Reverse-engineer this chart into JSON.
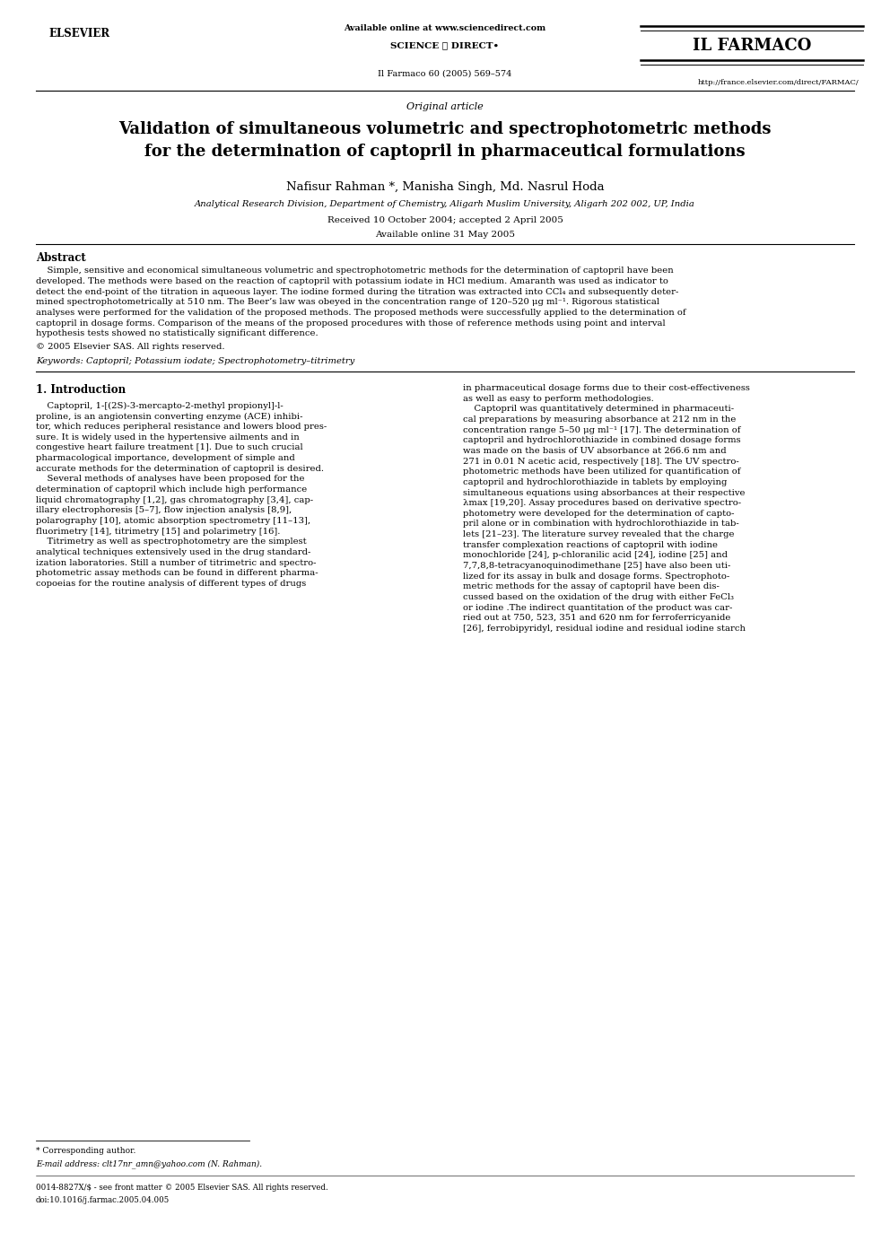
{
  "page_width": 9.92,
  "page_height": 14.03,
  "bg_color": "#ffffff",
  "header_elsevier": "ELSEVIER",
  "header_available": "Available online at www.sciencedirect.com",
  "header_scidir": "SCIENCE ⓐ DIRECT•",
  "header_journal_name": "IL FARMACO",
  "header_journal_info": "Il Farmaco 60 (2005) 569–574",
  "header_url": "http://france.elsevier.com/direct/FARMAC/",
  "article_type": "Original article",
  "title_line1": "Validation of simultaneous volumetric and spectrophotometric methods",
  "title_line2": "for the determination of captopril in pharmaceutical formulations",
  "authors": "Nafisur Rahman *, Manisha Singh, Md. Nasrul Hoda",
  "affiliation": "Analytical Research Division, Department of Chemistry, Aligarh Muslim University, Aligarh 202 002, UP, India",
  "received": "Received 10 October 2004; accepted 2 April 2005",
  "available": "Available online 31 May 2005",
  "abstract_heading": "Abstract",
  "abstract_body": "    Simple, sensitive and economical simultaneous volumetric and spectrophotometric methods for the determination of captopril have been\ndeveloped. The methods were based on the reaction of captopril with potassium iodate in HCl medium. Amaranth was used as indicator to\ndetect the end-point of the titration in aqueous layer. The iodine formed during the titration was extracted into CCl₄ and subsequently deter-\nmined spectrophotometrically at 510 nm. The Beer’s law was obeyed in the concentration range of 120–520 μg ml⁻¹. Rigorous statistical\nanalyses were performed for the validation of the proposed methods. The proposed methods were successfully applied to the determination of\ncaptopril in dosage forms. Comparison of the means of the proposed procedures with those of reference methods using point and interval\nhypothesis tests showed no statistically significant difference.",
  "copyright": "© 2005 Elsevier SAS. All rights reserved.",
  "keywords": "Keywords: Captopril; Potassium iodate; Spectrophotometry–titrimetry",
  "section1": "1. Introduction",
  "intro_left": "    Captopril, 1-[(2S)-3-mercapto-2-methyl propionyl]-l-\nproline, is an angiotensin converting enzyme (ACE) inhibi-\ntor, which reduces peripheral resistance and lowers blood pres-\nsure. It is widely used in the hypertensive ailments and in\ncongestive heart failure treatment [1]. Due to such crucial\npharmacological importance, development of simple and\naccurate methods for the determination of captopril is desired.\n    Several methods of analyses have been proposed for the\ndetermination of captopril which include high performance\nliquid chromatography [1,2], gas chromatography [3,4], cap-\nillary electrophoresis [5–7], flow injection analysis [8,9],\npolarography [10], atomic absorption spectrometry [11–13],\nfluorimetry [14], titrimetry [15] and polarimetry [16].\n    Titrimetry as well as spectrophotometry are the simplest\nanalytical techniques extensively used in the drug standard-\nization laboratories. Still a number of titrimetric and spectro-\nphotometric assay methods can be found in different pharma-\ncopoeias for the routine analysis of different types of drugs",
  "intro_right": "in pharmaceutical dosage forms due to their cost-effectiveness\nas well as easy to perform methodologies.\n    Captopril was quantitatively determined in pharmaceuti-\ncal preparations by measuring absorbance at 212 nm in the\nconcentration range 5–50 μg ml⁻¹ [17]. The determination of\ncaptopril and hydrochlorothiazide in combined dosage forms\nwas made on the basis of UV absorbance at 266.6 nm and\n271 in 0.01 N acetic acid, respectively [18]. The UV spectro-\nphotometric methods have been utilized for quantification of\ncaptopril and hydrochlorothiazide in tablets by employing\nsimultaneous equations using absorbances at their respective\nλmax [19,20]. Assay procedures based on derivative spectro-\nphotometry were developed for the determination of capto-\npril alone or in combination with hydrochlorothiazide in tab-\nlets [21–23]. The literature survey revealed that the charge\ntransfer complexation reactions of captopril with iodine\nmonochloride [24], p-chloranilic acid [24], iodine [25] and\n7,7,8,8-tetracyanoquinodimethane [25] have also been uti-\nlized for its assay in bulk and dosage forms. Spectrophoto-\nmetric methods for the assay of captopril have been dis-\ncussed based on the oxidation of the drug with either FeCl₃\nor iodine .The indirect quantitation of the product was car-\nried out at 750, 523, 351 and 620 nm for ferroferricyanide\n[26], ferrobipyridyl, residual iodine and residual iodine starch",
  "footnote1": "* Corresponding author.",
  "footnote2": "E-mail address: clt17nr_amn@yahoo.com (N. Rahman).",
  "footer1": "0014-8827X/$ - see front matter © 2005 Elsevier SAS. All rights reserved.",
  "footer2": "doi:10.1016/j.farmac.2005.04.005"
}
